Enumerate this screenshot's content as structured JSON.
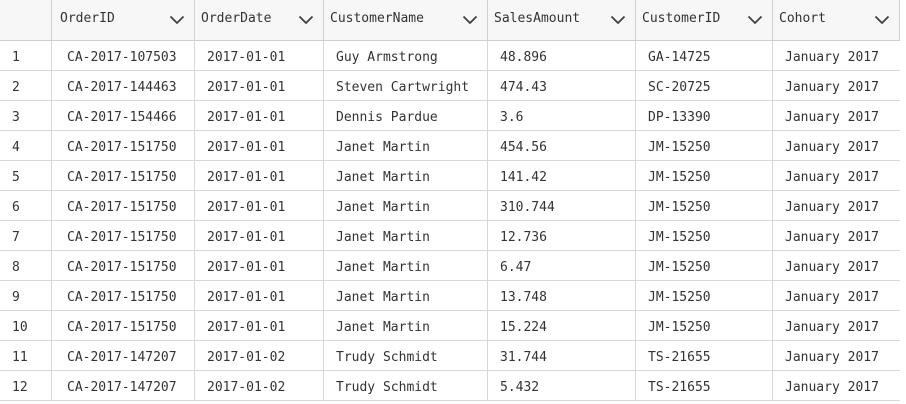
{
  "table": {
    "columns": [
      {
        "label": "",
        "icon": ""
      },
      {
        "label": "OrderID",
        "icon": "chevron-down-icon"
      },
      {
        "label": "OrderDate",
        "icon": "chevron-down-icon"
      },
      {
        "label": "CustomerName",
        "icon": "chevron-down-icon"
      },
      {
        "label": "SalesAmount",
        "icon": "chevron-down-icon"
      },
      {
        "label": "CustomerID",
        "icon": "chevron-down-icon"
      },
      {
        "label": "Cohort",
        "icon": "chevron-down-icon"
      }
    ],
    "rows": [
      [
        "1",
        "CA-2017-107503",
        "2017-01-01",
        "Guy Armstrong",
        "48.896",
        "GA-14725",
        "January 2017"
      ],
      [
        "2",
        "CA-2017-144463",
        "2017-01-01",
        "Steven Cartwright",
        "474.43",
        "SC-20725",
        "January 2017"
      ],
      [
        "3",
        "CA-2017-154466",
        "2017-01-01",
        "Dennis Pardue",
        "3.6",
        "DP-13390",
        "January 2017"
      ],
      [
        "4",
        "CA-2017-151750",
        "2017-01-01",
        "Janet Martin",
        "454.56",
        "JM-15250",
        "January 2017"
      ],
      [
        "5",
        "CA-2017-151750",
        "2017-01-01",
        "Janet Martin",
        "141.42",
        "JM-15250",
        "January 2017"
      ],
      [
        "6",
        "CA-2017-151750",
        "2017-01-01",
        "Janet Martin",
        "310.744",
        "JM-15250",
        "January 2017"
      ],
      [
        "7",
        "CA-2017-151750",
        "2017-01-01",
        "Janet Martin",
        "12.736",
        "JM-15250",
        "January 2017"
      ],
      [
        "8",
        "CA-2017-151750",
        "2017-01-01",
        "Janet Martin",
        "6.47",
        "JM-15250",
        "January 2017"
      ],
      [
        "9",
        "CA-2017-151750",
        "2017-01-01",
        "Janet Martin",
        "13.748",
        "JM-15250",
        "January 2017"
      ],
      [
        "10",
        "CA-2017-151750",
        "2017-01-01",
        "Janet Martin",
        "15.224",
        "JM-15250",
        "January 2017"
      ],
      [
        "11",
        "CA-2017-147207",
        "2017-01-02",
        "Trudy Schmidt",
        "31.744",
        "TS-21655",
        "January 2017"
      ],
      [
        "12",
        "CA-2017-147207",
        "2017-01-02",
        "Trudy Schmidt",
        "5.432",
        "TS-21655",
        "January 2017"
      ]
    ]
  },
  "colors": {
    "header_bg": "#f7f7f7",
    "grid_line": "#d8d8d8",
    "text": "#333333",
    "chevron": "#404040"
  }
}
